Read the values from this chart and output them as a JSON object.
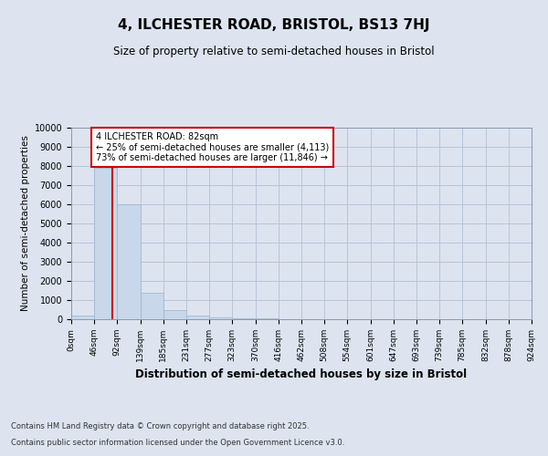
{
  "title_line1": "4, ILCHESTER ROAD, BRISTOL, BS13 7HJ",
  "title_line2": "Size of property relative to semi-detached houses in Bristol",
  "xlabel": "Distribution of semi-detached houses by size in Bristol",
  "ylabel": "Number of semi-detached properties",
  "footer_line1": "Contains HM Land Registry data © Crown copyright and database right 2025.",
  "footer_line2": "Contains public sector information licensed under the Open Government Licence v3.0.",
  "annotation_line1": "4 ILCHESTER ROAD: 82sqm",
  "annotation_line2": "← 25% of semi-detached houses are smaller (4,113)",
  "annotation_line3": "73% of semi-detached houses are larger (11,846) →",
  "property_size": 82,
  "bin_edges": [
    0,
    46,
    92,
    139,
    185,
    231,
    277,
    323,
    370,
    416,
    462,
    508,
    554,
    601,
    647,
    693,
    739,
    785,
    832,
    878,
    924
  ],
  "bar_heights": [
    200,
    7900,
    6000,
    1400,
    500,
    200,
    100,
    70,
    30,
    10,
    5,
    3,
    2,
    1,
    1,
    0,
    0,
    0,
    0,
    0
  ],
  "bar_color": "#c8d8ea",
  "bar_edge_color": "#9ab4cc",
  "grid_color": "#b8c4d8",
  "background_color": "#dde4f0",
  "vline_color": "#cc0000",
  "annotation_box_color": "#ffffff",
  "annotation_box_edge": "#cc0000",
  "ylim": [
    0,
    10000
  ],
  "yticks": [
    0,
    1000,
    2000,
    3000,
    4000,
    5000,
    6000,
    7000,
    8000,
    9000,
    10000
  ]
}
